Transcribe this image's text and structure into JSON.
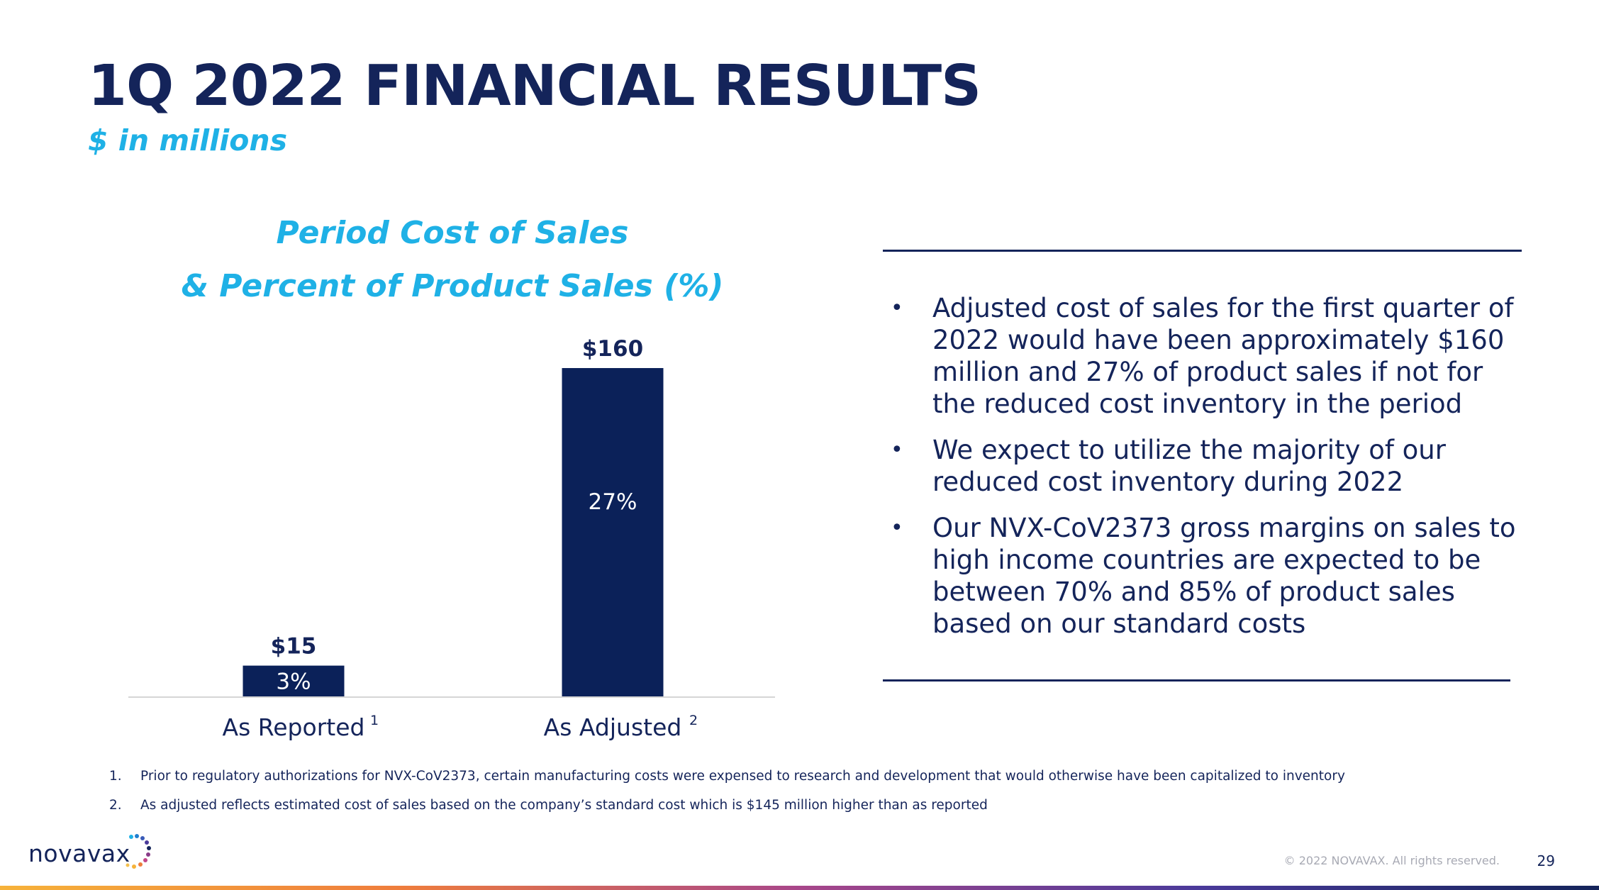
{
  "slide": {
    "title": "1Q 2022 FINANCIAL RESULTS",
    "subtitle": "$ in millions",
    "page_number": "29",
    "copyright": "© 2022 NOVAVAX. All rights reserved.",
    "logo_text": "novavax",
    "colors": {
      "navy": "#14245a",
      "accent_blue": "#1fb1e6",
      "bar": "#0b2159"
    }
  },
  "chart_data": {
    "type": "bar",
    "title": "Period Cost of Sales",
    "subtitle": "& Percent of Product Sales (%)",
    "categories": [
      "As Reported",
      "As Adjusted"
    ],
    "category_superscripts": [
      "1",
      "2"
    ],
    "values": [
      15,
      160
    ],
    "value_labels": [
      "$15",
      "$160"
    ],
    "percent_labels": [
      "3%",
      "27%"
    ],
    "ylim": [
      0,
      160
    ],
    "grid": false,
    "legend": "none"
  },
  "bullets": [
    "Adjusted cost of sales for the first quarter of 2022 would have been approximately $160 million and 27% of product sales if not for the reduced cost inventory in the period",
    "We expect to utilize the majority of our reduced cost inventory during 2022",
    "Our NVX-CoV2373 gross margins on sales to high income countries are expected to be between 70% and 85% of product sales based on our standard costs"
  ],
  "footnotes": [
    {
      "num": "1.",
      "text": "Prior to regulatory authorizations for NVX-CoV2373, certain manufacturing costs were expensed to research and development that would otherwise have been capitalized to inventory"
    },
    {
      "num": "2.",
      "text": "As adjusted reflects estimated cost of sales based on the company’s standard cost which is $145 million higher than as reported"
    }
  ]
}
